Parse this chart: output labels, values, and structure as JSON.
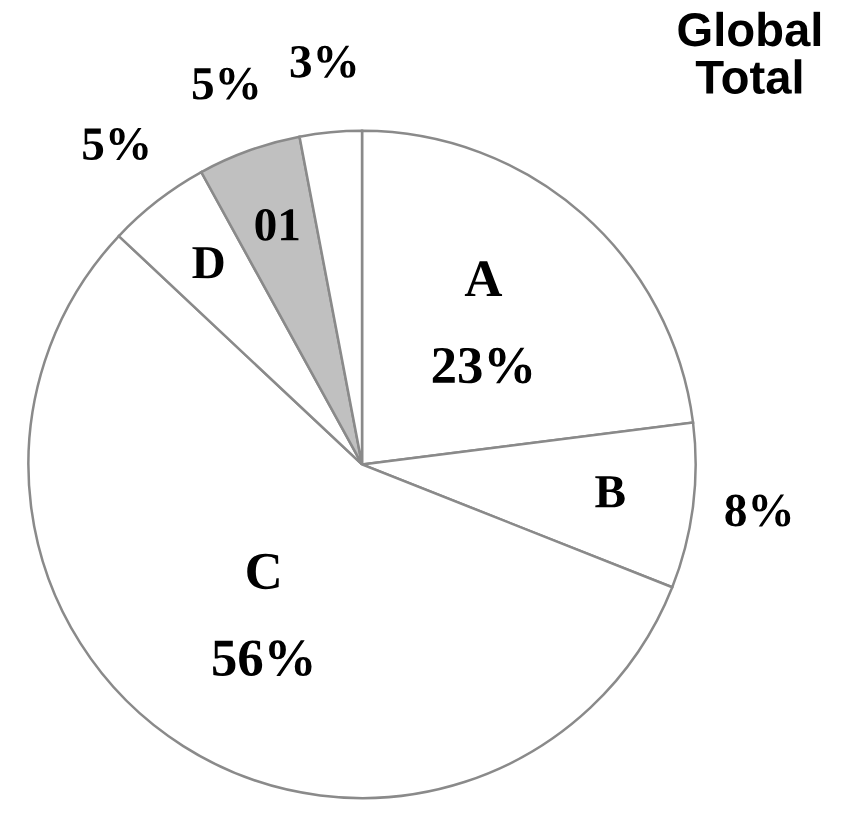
{
  "chart_data": {
    "type": "pie",
    "title": "Global Total",
    "categories": [
      "A",
      "B",
      "C",
      "D",
      "01",
      null
    ],
    "values": [
      23,
      8,
      56,
      5,
      5,
      3
    ],
    "value_labels": [
      "23%",
      "8%",
      "56%",
      "5%",
      "5%",
      "3%"
    ],
    "colors": [
      "#ffffff",
      "#ffffff",
      "#ffffff",
      "#ffffff",
      "#c0c0c0",
      "#ffffff"
    ],
    "legend": false
  }
}
